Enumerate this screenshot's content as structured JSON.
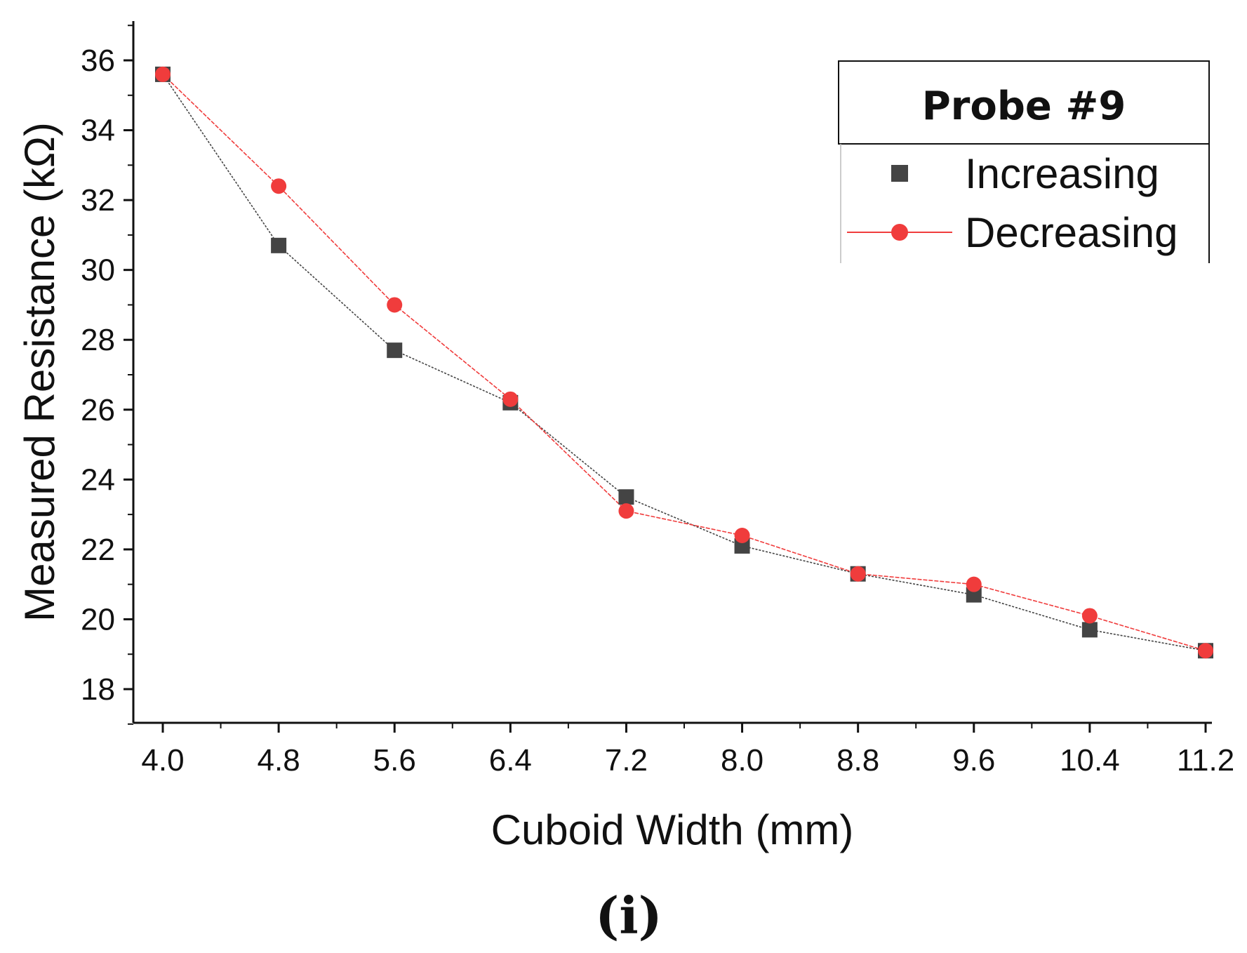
{
  "chart_data": {
    "type": "line",
    "xlabel": "Cuboid Width (mm)",
    "ylabel": "Measured Resistance (kΩ)",
    "x": [
      4.0,
      4.8,
      5.6,
      6.4,
      7.2,
      8.0,
      8.8,
      9.6,
      10.4,
      11.2
    ],
    "x_tick_labels": [
      "4.0",
      "4.8",
      "5.6",
      "6.4",
      "7.2",
      "8.0",
      "8.8",
      "9.6",
      "10.4",
      "11.2"
    ],
    "y_ticks": [
      18,
      20,
      22,
      24,
      26,
      28,
      30,
      32,
      34,
      36
    ],
    "xlim": [
      3.8,
      11.4
    ],
    "ylim": [
      17,
      37
    ],
    "legend_title": "Probe #9",
    "legend_position": "top-right",
    "series": [
      {
        "name": "Increasing",
        "marker": "square",
        "color": "#444444",
        "values": [
          35.6,
          30.7,
          27.7,
          26.2,
          23.5,
          22.1,
          21.3,
          20.7,
          19.7,
          19.1
        ]
      },
      {
        "name": "Decreasing",
        "marker": "circle",
        "color": "#f03c3c",
        "values": [
          35.6,
          32.4,
          29.0,
          26.3,
          23.1,
          22.4,
          21.3,
          21.0,
          20.1,
          19.1
        ]
      }
    ],
    "panel_label": "(i)"
  }
}
